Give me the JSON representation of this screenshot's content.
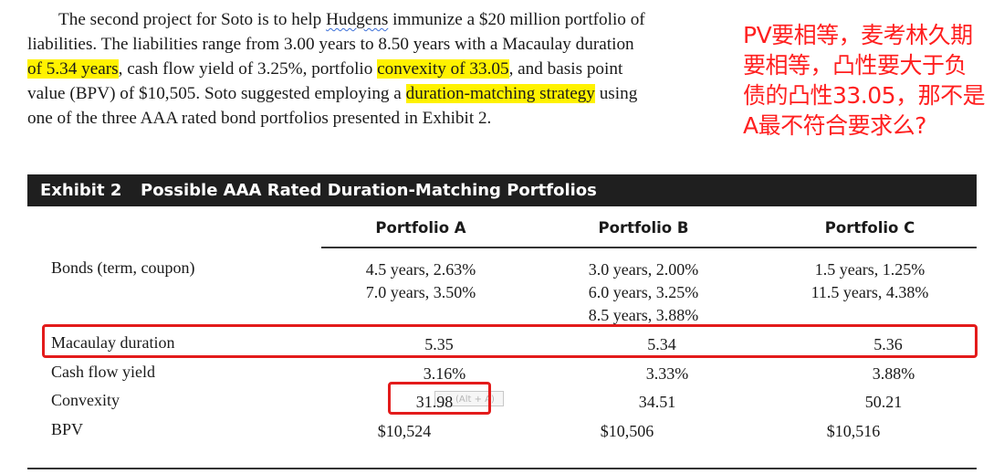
{
  "passage": {
    "line1_a": "The second project for Soto is to help ",
    "line1_b": "Hudgens",
    "line1_c": " immunize a $20 million portfolio of",
    "line2": "liabilities. The liabilities range from 3.00 years to 8.50 years with a Macaulay duration",
    "line3_a": "of 5.34 years",
    "line3_b": ", cash flow yield of 3.25%, portfolio ",
    "line3_c": "convexity of 33.05",
    "line3_d": ", and basis point",
    "line4_a": "value (BPV) of $10,505. Soto suggested employing a ",
    "line4_b": "duration-matching strategy",
    "line4_c": " using",
    "line5": "one of the three AAA rated bond portfolios presented in Exhibit 2."
  },
  "note": {
    "line1": "PV要相等，麦考林久期",
    "line2": "要相等，凸性要大于负",
    "line3": "债的凸性33.05，那不是",
    "line4": "A最不符合要求么?"
  },
  "exhibit": {
    "label": "Exhibit 2",
    "title": "Possible AAA Rated Duration-Matching Portfolios"
  },
  "table": {
    "columns": [
      "Portfolio A",
      "Portfolio B",
      "Portfolio C"
    ],
    "rows": [
      {
        "label": "Bonds (term, coupon)",
        "a": [
          "4.5 years, 2.63%",
          "7.0 years, 3.50%"
        ],
        "b": [
          "3.0 years, 2.00%",
          "6.0 years, 3.25%",
          "8.5 years, 3.88%"
        ],
        "c": [
          "1.5 years, 1.25%",
          "11.5 years, 4.38%"
        ]
      },
      {
        "label": "Macaulay duration",
        "a": "5.35",
        "b": "5.34",
        "c": "5.36"
      },
      {
        "label": "Cash flow yield",
        "a": "3.16%",
        "b": "3.33%",
        "c": "3.88%"
      },
      {
        "label": "Convexity",
        "a": "31.98",
        "b": "34.51",
        "c": "50.21"
      },
      {
        "label": "BPV",
        "a": "$10,524",
        "b": "$10,506",
        "c": "$10,516"
      }
    ]
  },
  "tooltip": "(Alt + A)",
  "colors": {
    "highlight": "#fff200",
    "annotation_red": "#ff1f1f",
    "box_red": "#e31b1b",
    "header_bar": "#1f1f1f"
  }
}
